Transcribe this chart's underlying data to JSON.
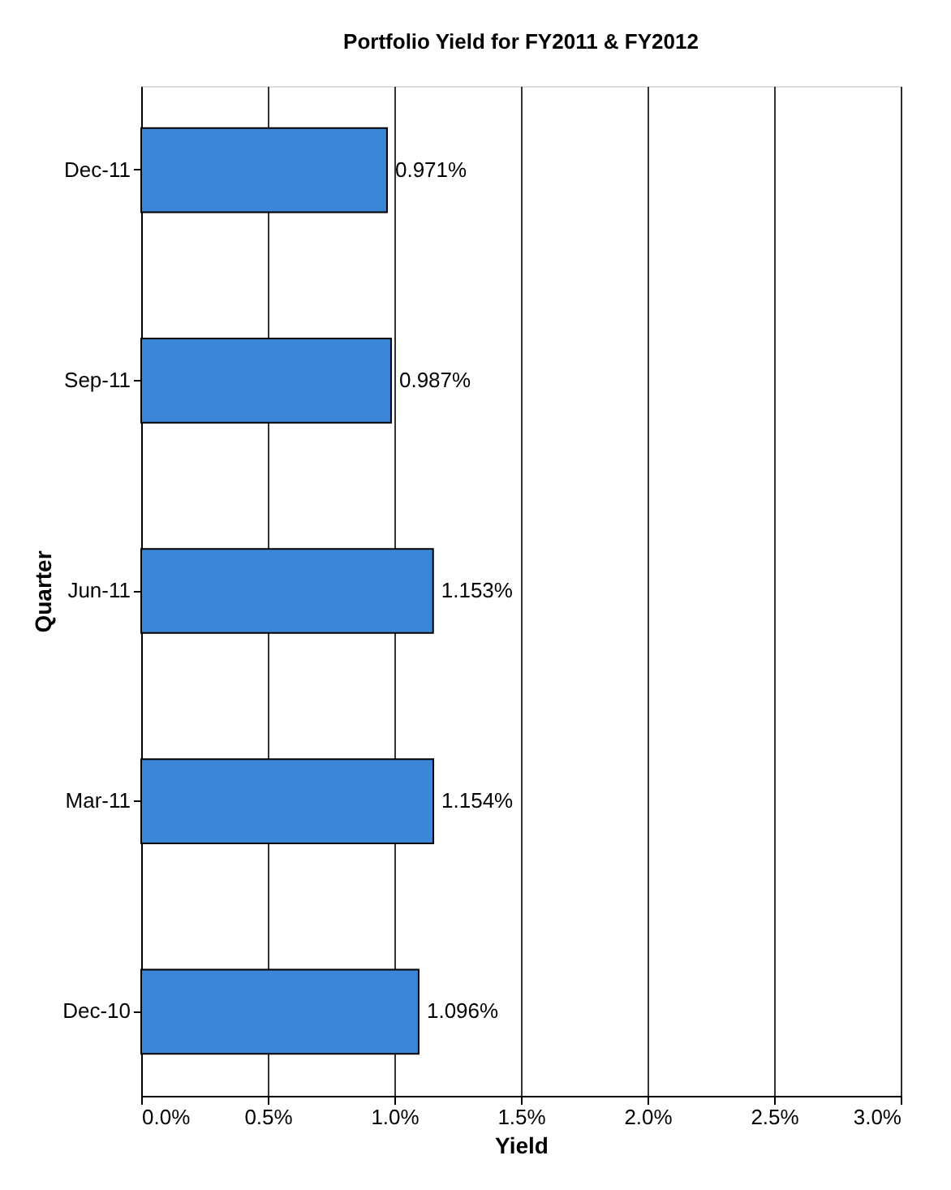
{
  "chart_data": {
    "type": "bar",
    "orientation": "horizontal",
    "title": "Portfolio Yield for FY2011 & FY2012",
    "xlabel": "Yield",
    "ylabel": "Quarter",
    "categories": [
      "Dec-11",
      "Sep-11",
      "Jun-11",
      "Mar-11",
      "Dec-10"
    ],
    "values": [
      0.971,
      0.987,
      1.153,
      1.154,
      1.096
    ],
    "value_labels": [
      "0.971%",
      "0.987%",
      "1.153%",
      "1.154%",
      "1.096%"
    ],
    "color": "#3b86d6",
    "xlim": [
      0,
      3
    ],
    "xticks": [
      {
        "value": 0,
        "label": "0.0%"
      },
      {
        "value": 0.5,
        "label": "0.5%"
      },
      {
        "value": 1,
        "label": "1.0%"
      },
      {
        "value": 1.5,
        "label": "1.5%"
      },
      {
        "value": 2,
        "label": "2.0%"
      },
      {
        "value": 2.5,
        "label": "2.5%"
      },
      {
        "value": 3,
        "label": "3.0%"
      }
    ],
    "grid": "x"
  }
}
